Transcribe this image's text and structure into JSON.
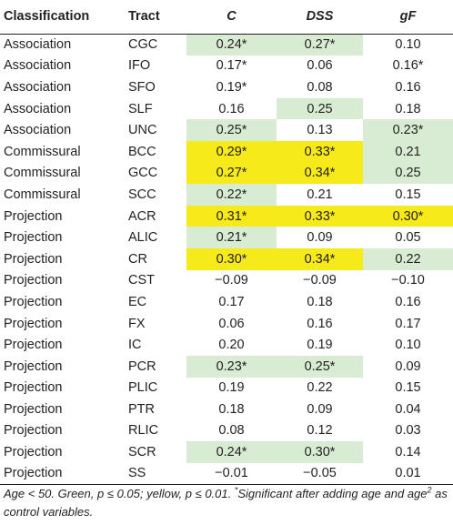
{
  "headers": [
    "Classification",
    "Tract",
    "C",
    "DSS",
    "gF"
  ],
  "rows": [
    {
      "cls": "Association",
      "tract": "CGC",
      "c": "0.24*",
      "c_bg": "g",
      "dss": "0.27*",
      "dss_bg": "g",
      "gf": "0.10",
      "gf_bg": ""
    },
    {
      "cls": "Association",
      "tract": "IFO",
      "c": "0.17*",
      "c_bg": "",
      "dss": "0.06",
      "dss_bg": "",
      "gf": "0.16*",
      "gf_bg": ""
    },
    {
      "cls": "Association",
      "tract": "SFO",
      "c": "0.19*",
      "c_bg": "",
      "dss": "0.08",
      "dss_bg": "",
      "gf": "0.16",
      "gf_bg": ""
    },
    {
      "cls": "Association",
      "tract": "SLF",
      "c": "0.16",
      "c_bg": "",
      "dss": "0.25",
      "dss_bg": "g",
      "gf": "0.18",
      "gf_bg": ""
    },
    {
      "cls": "Association",
      "tract": "UNC",
      "c": "0.25*",
      "c_bg": "g",
      "dss": "0.13",
      "dss_bg": "",
      "gf": "0.23*",
      "gf_bg": "g"
    },
    {
      "cls": "Commissural",
      "tract": "BCC",
      "c": "0.29*",
      "c_bg": "y",
      "dss": "0.33*",
      "dss_bg": "y",
      "gf": "0.21",
      "gf_bg": "g"
    },
    {
      "cls": "Commissural",
      "tract": "GCC",
      "c": "0.27*",
      "c_bg": "y",
      "dss": "0.34*",
      "dss_bg": "y",
      "gf": "0.25",
      "gf_bg": "g"
    },
    {
      "cls": "Commissural",
      "tract": "SCC",
      "c": "0.22*",
      "c_bg": "g",
      "dss": "0.21",
      "dss_bg": "",
      "gf": "0.15",
      "gf_bg": ""
    },
    {
      "cls": "Projection",
      "tract": "ACR",
      "c": "0.31*",
      "c_bg": "y",
      "dss": "0.33*",
      "dss_bg": "y",
      "gf": "0.30*",
      "gf_bg": "y"
    },
    {
      "cls": "Projection",
      "tract": "ALIC",
      "c": "0.21*",
      "c_bg": "g",
      "dss": "0.09",
      "dss_bg": "",
      "gf": "0.05",
      "gf_bg": ""
    },
    {
      "cls": "Projection",
      "tract": "CR",
      "c": "0.30*",
      "c_bg": "y",
      "dss": "0.34*",
      "dss_bg": "y",
      "gf": "0.22",
      "gf_bg": "g"
    },
    {
      "cls": "Projection",
      "tract": "CST",
      "c": "−0.09",
      "c_bg": "",
      "dss": "−0.09",
      "dss_bg": "",
      "gf": "−0.10",
      "gf_bg": ""
    },
    {
      "cls": "Projection",
      "tract": "EC",
      "c": "0.17",
      "c_bg": "",
      "dss": "0.18",
      "dss_bg": "",
      "gf": "0.16",
      "gf_bg": ""
    },
    {
      "cls": "Projection",
      "tract": "FX",
      "c": "0.06",
      "c_bg": "",
      "dss": "0.16",
      "dss_bg": "",
      "gf": "0.17",
      "gf_bg": ""
    },
    {
      "cls": "Projection",
      "tract": "IC",
      "c": "0.20",
      "c_bg": "",
      "dss": "0.19",
      "dss_bg": "",
      "gf": "0.10",
      "gf_bg": ""
    },
    {
      "cls": "Projection",
      "tract": "PCR",
      "c": "0.23*",
      "c_bg": "g",
      "dss": "0.25*",
      "dss_bg": "g",
      "gf": "0.09",
      "gf_bg": ""
    },
    {
      "cls": "Projection",
      "tract": "PLIC",
      "c": "0.19",
      "c_bg": "",
      "dss": "0.22",
      "dss_bg": "",
      "gf": "0.15",
      "gf_bg": ""
    },
    {
      "cls": "Projection",
      "tract": "PTR",
      "c": "0.18",
      "c_bg": "",
      "dss": "0.09",
      "dss_bg": "",
      "gf": "0.04",
      "gf_bg": ""
    },
    {
      "cls": "Projection",
      "tract": "RLIC",
      "c": "0.08",
      "c_bg": "",
      "dss": "0.12",
      "dss_bg": "",
      "gf": "0.03",
      "gf_bg": ""
    },
    {
      "cls": "Projection",
      "tract": "SCR",
      "c": "0.24*",
      "c_bg": "g",
      "dss": "0.30*",
      "dss_bg": "g",
      "gf": "0.14",
      "gf_bg": ""
    },
    {
      "cls": "Projection",
      "tract": "SS",
      "c": "−0.01",
      "c_bg": "",
      "dss": "−0.05",
      "dss_bg": "",
      "gf": "0.01",
      "gf_bg": ""
    }
  ],
  "note": {
    "part1": "Age < 50. Green, p ≤ 0.05; yellow, p ≤ 0.01. ",
    "star": "*",
    "part2": "Significant after adding age and age",
    "sup": "2",
    "part3": " as control variables."
  },
  "colors": {
    "green": "#d7ecd2",
    "yellow": "#f7ea1b"
  }
}
